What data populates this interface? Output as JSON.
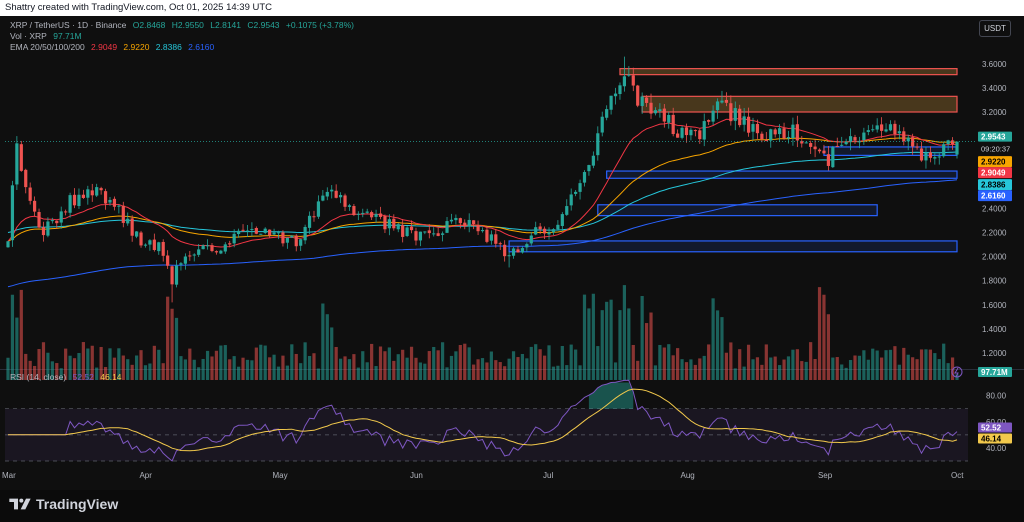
{
  "header": {
    "text": "Shattry created with TradingView.com, Oct 01, 2025 14:39 UTC"
  },
  "symbol": {
    "title": "XRP / TetherUS · 1D · Binance",
    "open": "O2.8468",
    "high": "H2.9550",
    "low": "L2.8141",
    "close": "C2.9543",
    "change": "+0.1075 (+3.78%)"
  },
  "volume_legend": {
    "label": "Vol · XRP",
    "value": "97.71M"
  },
  "ema_legend": {
    "label": "EMA 20/50/100/200",
    "v20": "2.9049",
    "v50": "2.9220",
    "v100": "2.8386",
    "v200": "2.6160"
  },
  "currency": "USDT",
  "rsi_legend": {
    "label": "RSI (14, close)",
    "rsi": "52.52",
    "ma": "46.14"
  },
  "brand": "TradingView",
  "colors": {
    "up": "#26a69a",
    "down": "#ef5350",
    "ema20": "#f23645",
    "ema50": "#f7a500",
    "ema100": "#26c6da",
    "ema200": "#2962ff",
    "rsi": "#7e57c2",
    "rsi_ma": "#f2c94c",
    "supply": "#ef5350",
    "demand": "#2962ff"
  },
  "icons": {
    "logo": "tradingview-logo-icon",
    "lightning": "lightning-icon"
  },
  "chart_data": [
    {
      "type": "candlestick",
      "title": "XRP / TetherUS · 1D · Binance",
      "x_range": [
        "2025-03-01",
        "2025-10-01"
      ],
      "xticks": [
        "Mar",
        "Apr",
        "May",
        "Jun",
        "Jul",
        "Aug",
        "Sep",
        "Oct"
      ],
      "ylim": [
        1.05,
        3.75
      ],
      "yticks": [
        "3.6000",
        "3.4000",
        "3.2000",
        "3.0000",
        "2.4000",
        "2.2000",
        "2.0000",
        "1.8000",
        "1.6000",
        "1.4000",
        "1.2000"
      ],
      "last_close": "2.9543",
      "countdown": "09:20:37",
      "ema_labels": [
        {
          "name": "EMA 50",
          "value": "2.9220"
        },
        {
          "name": "EMA 20",
          "value": "2.9049"
        },
        {
          "name": "EMA 100",
          "value": "2.8386"
        },
        {
          "name": "EMA 200",
          "value": "2.6160"
        }
      ],
      "anchors": [
        [
          "2025-03-01",
          2.15
        ],
        [
          "2025-03-03",
          2.95
        ],
        [
          "2025-03-05",
          2.55
        ],
        [
          "2025-03-08",
          2.2
        ],
        [
          "2025-03-12",
          2.3
        ],
        [
          "2025-03-15",
          2.45
        ],
        [
          "2025-03-19",
          2.55
        ],
        [
          "2025-03-25",
          2.45
        ],
        [
          "2025-03-31",
          2.1
        ],
        [
          "2025-04-04",
          2.1
        ],
        [
          "2025-04-07",
          1.8
        ],
        [
          "2025-04-10",
          2.05
        ],
        [
          "2025-04-16",
          2.05
        ],
        [
          "2025-04-22",
          2.2
        ],
        [
          "2025-04-26",
          2.2
        ],
        [
          "2025-05-05",
          2.12
        ],
        [
          "2025-05-10",
          2.45
        ],
        [
          "2025-05-13",
          2.55
        ],
        [
          "2025-05-18",
          2.4
        ],
        [
          "2025-05-30",
          2.2
        ],
        [
          "2025-06-05",
          2.15
        ],
        [
          "2025-06-10",
          2.3
        ],
        [
          "2025-06-16",
          2.2
        ],
        [
          "2025-06-22",
          2.0
        ],
        [
          "2025-06-28",
          2.2
        ],
        [
          "2025-07-04",
          2.3
        ],
        [
          "2025-07-10",
          2.8
        ],
        [
          "2025-07-14",
          3.2
        ],
        [
          "2025-07-18",
          3.55
        ],
        [
          "2025-07-22",
          3.25
        ],
        [
          "2025-07-30",
          3.05
        ],
        [
          "2025-08-04",
          3.0
        ],
        [
          "2025-08-08",
          3.3
        ],
        [
          "2025-08-14",
          3.1
        ],
        [
          "2025-08-20",
          3.0
        ],
        [
          "2025-08-25",
          3.05
        ],
        [
          "2025-09-01",
          2.8
        ],
        [
          "2025-09-08",
          2.95
        ],
        [
          "2025-09-12",
          3.1
        ],
        [
          "2025-09-16",
          3.1
        ],
        [
          "2025-09-22",
          2.85
        ],
        [
          "2025-09-26",
          2.8
        ],
        [
          "2025-10-01",
          2.9543
        ]
      ],
      "zones": [
        {
          "kind": "supply",
          "from": "2025-07-17",
          "to": "2025-10-01",
          "low": 3.51,
          "high": 3.56
        },
        {
          "kind": "supply",
          "from": "2025-07-22",
          "to": "2025-10-01",
          "low": 3.2,
          "high": 3.33
        },
        {
          "kind": "demand",
          "from": "2025-09-01",
          "to": "2025-10-01",
          "low": 2.84,
          "high": 2.91
        },
        {
          "kind": "demand",
          "from": "2025-07-14",
          "to": "2025-10-01",
          "low": 2.65,
          "high": 2.71
        },
        {
          "kind": "demand",
          "from": "2025-07-12",
          "to": "2025-09-13",
          "low": 2.34,
          "high": 2.43
        },
        {
          "kind": "demand",
          "from": "2025-06-22",
          "to": "2025-10-01",
          "low": 2.04,
          "high": 2.13
        }
      ]
    },
    {
      "type": "bar",
      "title": "Vol · XRP",
      "last_value": "97.71M"
    },
    {
      "type": "line",
      "title": "RSI (14, close)",
      "ylim": [
        30,
        95
      ],
      "yticks": [
        "80.00",
        "60.00",
        "40.00"
      ],
      "bands": [
        70,
        50,
        30
      ],
      "series": [
        {
          "name": "RSI",
          "last": "52.52"
        },
        {
          "name": "RSI-based MA",
          "last": "46.14"
        }
      ]
    }
  ]
}
